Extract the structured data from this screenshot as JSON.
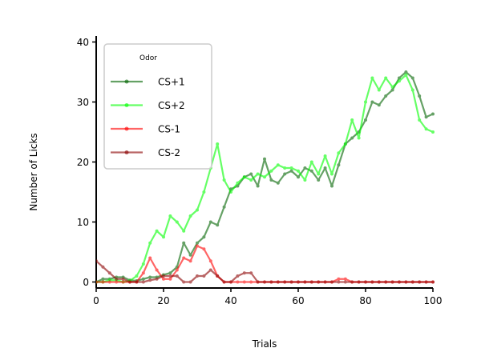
{
  "chart_data": {
    "type": "line",
    "xlabel": "Trials",
    "ylabel": "Number of Licks",
    "xlim": [
      0,
      100
    ],
    "ylim": [
      -1,
      41
    ],
    "x_ticks": [
      0,
      20,
      40,
      60,
      80,
      100
    ],
    "y_ticks": [
      0,
      10,
      20,
      30,
      40
    ],
    "grid": false,
    "legend": {
      "title": "Odor",
      "placement": "top-left"
    },
    "series": [
      {
        "name": "CS+1",
        "color": "#006400",
        "x": [
          0,
          2,
          4,
          6,
          8,
          10,
          12,
          14,
          16,
          18,
          20,
          22,
          24,
          26,
          28,
          30,
          32,
          34,
          36,
          38,
          40,
          42,
          44,
          46,
          48,
          50,
          52,
          54,
          56,
          58,
          60,
          62,
          64,
          66,
          68,
          70,
          72,
          74,
          76,
          78,
          80,
          82,
          84,
          86,
          88,
          90,
          92,
          94,
          96,
          98,
          100
        ],
        "y": [
          0,
          0.5,
          0.5,
          0.8,
          0.8,
          0.3,
          0.2,
          0.5,
          0.8,
          0.8,
          1.2,
          1.5,
          2.5,
          6.5,
          4.5,
          6.5,
          7.5,
          10,
          9.5,
          12.5,
          15.5,
          16,
          17.5,
          18,
          16,
          20.5,
          17,
          16.5,
          18,
          18.5,
          17.5,
          19,
          18.5,
          17,
          19,
          16,
          19.5,
          23,
          24,
          25,
          27,
          30,
          29.5,
          31,
          32,
          34,
          35,
          34,
          31,
          27.5,
          28
        ]
      },
      {
        "name": "CS+2",
        "color": "#00ff00",
        "x": [
          0,
          2,
          4,
          6,
          8,
          10,
          12,
          14,
          16,
          18,
          20,
          22,
          24,
          26,
          28,
          30,
          32,
          34,
          36,
          38,
          40,
          42,
          44,
          46,
          48,
          50,
          52,
          54,
          56,
          58,
          60,
          62,
          64,
          66,
          68,
          70,
          72,
          74,
          76,
          78,
          80,
          82,
          84,
          86,
          88,
          90,
          92,
          94,
          96,
          98,
          100
        ],
        "y": [
          0,
          0,
          0.3,
          0.3,
          0,
          0.2,
          1,
          3,
          6.5,
          8.5,
          7.5,
          11,
          10,
          8.5,
          11,
          12,
          15,
          19,
          23,
          17,
          15,
          16.5,
          17.5,
          17,
          18,
          17.5,
          18.5,
          19.5,
          19,
          19,
          18.5,
          17,
          20,
          18,
          21,
          18,
          21.5,
          23,
          27,
          24,
          30,
          34,
          32,
          34,
          32.5,
          33.5,
          34.5,
          32,
          27,
          25.5,
          25
        ]
      },
      {
        "name": "CS-1",
        "color": "#ff0000",
        "x": [
          0,
          2,
          4,
          6,
          8,
          10,
          12,
          14,
          16,
          18,
          20,
          22,
          24,
          26,
          28,
          30,
          32,
          34,
          36,
          38,
          40,
          42,
          44,
          46,
          48,
          50,
          52,
          54,
          56,
          58,
          60,
          62,
          64,
          66,
          68,
          70,
          72,
          74,
          76,
          78,
          80,
          82,
          84,
          86,
          88,
          90,
          92,
          94,
          96,
          98,
          100
        ],
        "y": [
          0,
          0,
          0,
          0,
          0,
          0,
          0,
          1.5,
          4,
          2,
          0.5,
          0.5,
          2,
          4,
          3.5,
          6,
          5.5,
          3.5,
          1,
          0,
          0,
          0,
          0,
          0,
          0,
          0,
          0,
          0,
          0,
          0,
          0,
          0,
          0,
          0,
          0,
          0,
          0.5,
          0.5,
          0,
          0,
          0,
          0,
          0,
          0,
          0,
          0,
          0,
          0,
          0,
          0,
          0
        ]
      },
      {
        "name": "CS-2",
        "color": "#8b0000",
        "x": [
          0,
          2,
          4,
          6,
          8,
          10,
          12,
          14,
          16,
          18,
          20,
          22,
          24,
          26,
          28,
          30,
          32,
          34,
          36,
          38,
          40,
          42,
          44,
          46,
          48,
          50,
          52,
          54,
          56,
          58,
          60,
          62,
          64,
          66,
          68,
          70,
          72,
          74,
          76,
          78,
          80,
          82,
          84,
          86,
          88,
          90,
          92,
          94,
          96,
          98,
          100
        ],
        "y": [
          3.5,
          2.5,
          1.5,
          0.5,
          0.5,
          0,
          0,
          0,
          0.3,
          0.5,
          1,
          1,
          1,
          0,
          0,
          1,
          1,
          2,
          1,
          0,
          0,
          1,
          1.5,
          1.5,
          0,
          0,
          0,
          0,
          0,
          0,
          0,
          0,
          0,
          0,
          0,
          0,
          0,
          0,
          0,
          0,
          0,
          0,
          0,
          0,
          0,
          0,
          0,
          0,
          0,
          0,
          0
        ]
      }
    ]
  }
}
